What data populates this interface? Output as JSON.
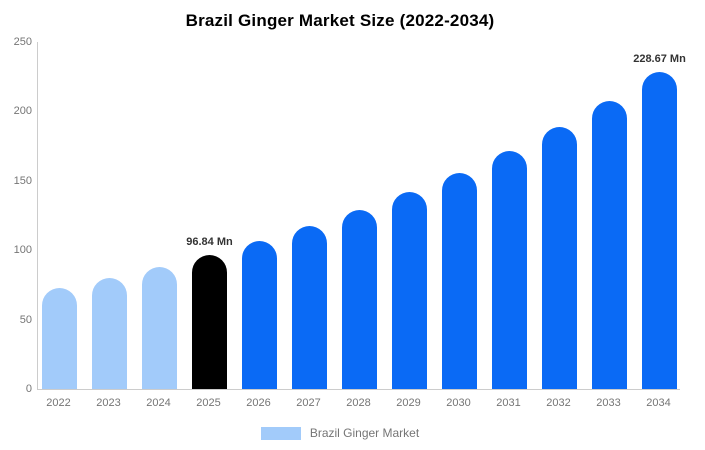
{
  "title": "Brazil Ginger Market Size (2022-2034)",
  "legend": {
    "label": "Brazil Ginger Market",
    "swatch_color": "#a2cbfa"
  },
  "colors": {
    "historical_bar": "#a2cbfa",
    "highlight_bar": "#000000",
    "forecast_bar": "#0a6af5",
    "axis_line": "#cccccc",
    "axis_text": "#757575",
    "annotation_text": "#333333",
    "title_text": "#000000",
    "background": "#ffffff"
  },
  "chart_data": {
    "type": "bar",
    "title": "Brazil Ginger Market Size (2022-2034)",
    "categories": [
      "2022",
      "2023",
      "2024",
      "2025",
      "2026",
      "2027",
      "2028",
      "2029",
      "2030",
      "2031",
      "2032",
      "2033",
      "2034"
    ],
    "values": [
      72.8,
      80.1,
      88.1,
      96.84,
      106.5,
      117.2,
      128.9,
      141.8,
      155.9,
      171.5,
      188.7,
      207.6,
      228.67
    ],
    "unit": "Mn",
    "xlabel": "",
    "ylabel": "",
    "ylim": [
      0,
      250
    ],
    "yticks": [
      0,
      50,
      100,
      150,
      200,
      250
    ],
    "grid": false,
    "legend_position": "bottom",
    "legend_entries": [
      "Brazil Ginger Market"
    ],
    "bar_colors": [
      "#a2cbfa",
      "#a2cbfa",
      "#a2cbfa",
      "#000000",
      "#0a6af5",
      "#0a6af5",
      "#0a6af5",
      "#0a6af5",
      "#0a6af5",
      "#0a6af5",
      "#0a6af5",
      "#0a6af5",
      "#0a6af5"
    ],
    "annotations": [
      {
        "category": "2025",
        "text": "96.84 Mn"
      },
      {
        "category": "2034",
        "text": "228.67 Mn"
      }
    ]
  }
}
